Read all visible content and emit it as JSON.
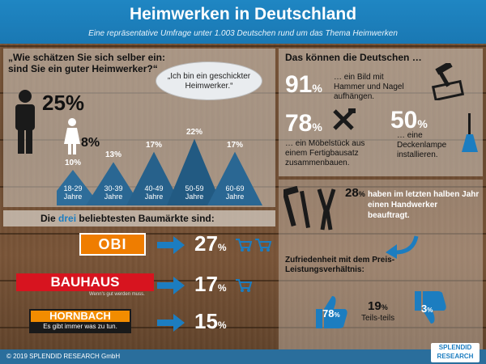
{
  "header": {
    "title": "Heimwerken in Deutschland",
    "subtitle": "Eine repräsentative Umfrage unter 1.003 Deutschen rund um das Thema Heimwerken"
  },
  "self_assessment": {
    "question": "„Wie schätzen Sie sich selber ein: sind Sie ein guter Heimwerker?“",
    "bubble": "„Ich bin ein geschickter Heimwerker.“",
    "male_pct": "25%",
    "female_pct": "8%",
    "age_groups": [
      {
        "label": "18-29 Jahre",
        "pct": "10%",
        "value": 10
      },
      {
        "label": "30-39 Jahre",
        "pct": "13%",
        "value": 13
      },
      {
        "label": "40-49 Jahre",
        "pct": "17%",
        "value": 17
      },
      {
        "label": "50-59 Jahre",
        "pct": "22%",
        "value": 22
      },
      {
        "label": "60-69 Jahre",
        "pct": "17%",
        "value": 17
      }
    ]
  },
  "can_do": {
    "title": "Das können die Deutschen …",
    "item1_pct": "91",
    "item1_text": "… ein Bild mit Hammer und Nagel aufhängen.",
    "item2_pct": "78",
    "item2_text": "… ein Möbelstück aus einem Fertigbausatz zusammenbauen.",
    "item3_pct": "50",
    "item3_text": "… eine Deckenlampe installieren."
  },
  "craftsman": {
    "pct": "28",
    "text": "haben im letzten halben Jahr einen Handwerker beauftragt."
  },
  "satisfaction": {
    "title": "Zufriedenheit mit dem Preis-Leistungsverhältnis:",
    "positive": "78",
    "neutral": "19",
    "neutral_label": "Teils-teils",
    "negative": "3"
  },
  "stores": {
    "title_pre": "Die ",
    "title_highlight": "drei",
    "title_post": " beliebtesten Baumärkte sind:",
    "items": [
      {
        "name": "OBI",
        "pct": "27",
        "carts": 2
      },
      {
        "name": "BAUHAUS",
        "slogan": "Wenn's gut werden muss.",
        "pct": "17",
        "carts": 1
      },
      {
        "name": "HORNBACH",
        "slogan": "Es gibt immer was zu tun.",
        "pct": "15",
        "carts": 0
      }
    ]
  },
  "footer": {
    "copyright": "© 2019 SPLENDID RESEARCH GmbH",
    "brand1": "SPLENDID",
    "brand2": "RESEARCH"
  },
  "pct_sign": "%",
  "colors": {
    "blue": "#1c7dc0",
    "orange": "#ef7d00",
    "bauhaus_red": "#d7141f",
    "hornbach_orange": "#f28c00"
  }
}
